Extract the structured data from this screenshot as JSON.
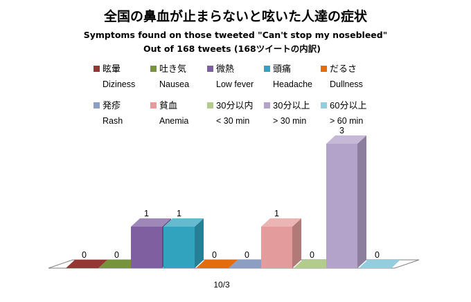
{
  "chart_data": {
    "type": "bar",
    "title": "全国の鼻血が止まらないと呟いた人達の症状",
    "subtitle_1": "Symptoms found on those tweeted \"Can't stop my nosebleed\"",
    "subtitle_2": "Out of 168 tweets (168ツイートの内訳)",
    "categories": [
      "10/3"
    ],
    "series": [
      {
        "name": "眩暈",
        "name_en": "Diziness",
        "value": 0,
        "color": "#943634"
      },
      {
        "name": "吐き気",
        "name_en": "Nausea",
        "value": 0,
        "color": "#77933c"
      },
      {
        "name": "微熱",
        "name_en": "Low fever",
        "value": 1,
        "color": "#7f5fa0"
      },
      {
        "name": "頭痛",
        "name_en": "Headache",
        "value": 1,
        "color": "#31a3bf"
      },
      {
        "name": "だるさ",
        "name_en": "Dullness",
        "value": 0,
        "color": "#e46c0a"
      },
      {
        "name": "発疹",
        "name_en": "Rash",
        "value": 0,
        "color": "#8c9fc3"
      },
      {
        "name": "貧血",
        "name_en": "Anemia",
        "value": 1,
        "color": "#e39c9b"
      },
      {
        "name": "30分以内",
        "name_en": "< 30 min",
        "value": 0,
        "color": "#b3cc8e"
      },
      {
        "name": "30分以上",
        "name_en": "> 30 min",
        "value": 3,
        "color": "#b3a2c9"
      },
      {
        "name": "60分以上",
        "name_en": "> 60 min",
        "value": 0,
        "color": "#93cdde"
      }
    ],
    "ylim": [
      0,
      3
    ],
    "grid": false,
    "legend_position": "top"
  }
}
